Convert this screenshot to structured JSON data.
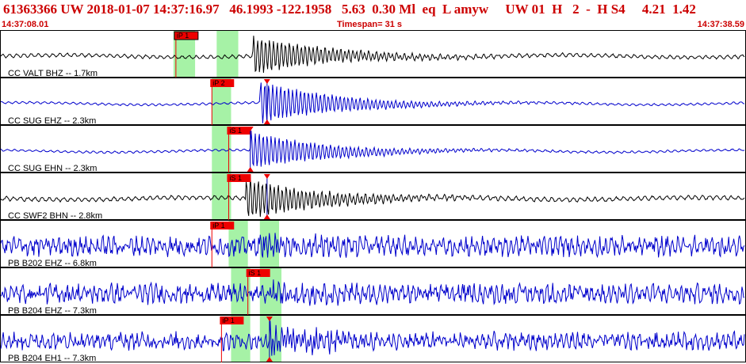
{
  "header": {
    "summary": "61363366 UW 2018-01-07 14:37:16.97   46.1993 -122.1958   5.63  0.30 Ml  eq  L amyw     UW 01  H   2  -  H S4     4.21  1.42",
    "start_time": "14:37:08.01",
    "timespan_label": "Timespan=  31 s",
    "end_time": "14:37:38.59"
  },
  "colors": {
    "header_text": "#cc0000",
    "black_trace": "#000000",
    "blue_trace": "#0000cc",
    "pick_flag": "#ee0000",
    "highlight": "#a6f2a6",
    "grid": "#c8c8c8"
  },
  "panels": [
    {
      "label": "CC VALT BHZ -- 1.7km",
      "color": "black",
      "kind": "smooth",
      "onset_s": 10.5,
      "amp": 0.85,
      "noise": 0.07,
      "pick": {
        "label": "iP 1",
        "t_s": 7.3,
        "selected": true
      },
      "highlights": [
        {
          "start_s": 7.2,
          "end_s": 8.1
        },
        {
          "start_s": 9.0,
          "end_s": 9.9
        }
      ],
      "marker_t_s": null
    },
    {
      "label": "CC SUG EHZ -- 2.3km",
      "color": "blue",
      "kind": "smooth",
      "onset_s": 10.8,
      "amp": 0.95,
      "noise": 0.04,
      "pick": {
        "label": "iP 2",
        "t_s": 8.8,
        "selected": false
      },
      "highlights": [
        {
          "start_s": 8.8,
          "end_s": 9.6
        }
      ],
      "marker_t_s": 11.1
    },
    {
      "label": "CC SUG EHN -- 2.3km",
      "color": "blue",
      "kind": "smooth",
      "onset_s": 10.4,
      "amp": 0.85,
      "noise": 0.04,
      "pick": {
        "label": "iS 1",
        "t_s": 9.5,
        "selected": false
      },
      "highlights": [
        {
          "start_s": 8.8,
          "end_s": 9.6
        }
      ],
      "marker_t_s": 10.4
    },
    {
      "label": "CC SWF2 BHN -- 2.8km",
      "color": "black",
      "kind": "smooth",
      "onset_s": 10.2,
      "amp": 0.9,
      "noise": 0.08,
      "pick": {
        "label": "iS 1",
        "t_s": 9.5,
        "selected": false
      },
      "highlights": [
        {
          "start_s": 8.8,
          "end_s": 9.6
        }
      ],
      "marker_t_s": 11.1
    },
    {
      "label": "PB B202 EHZ -- 6.8km",
      "color": "blue",
      "kind": "noisy",
      "onset_s": 10.8,
      "amp": 0.35,
      "noise": 0.45,
      "pick": {
        "label": "iP 1",
        "t_s": 8.8,
        "selected": false
      },
      "highlights": [
        {
          "start_s": 9.5,
          "end_s": 10.3
        },
        {
          "start_s": 10.8,
          "end_s": 11.6
        }
      ],
      "marker_t_s": null
    },
    {
      "label": "PB B204 EHZ -- 7.3km",
      "color": "blue",
      "kind": "noisy",
      "onset_s": 11.2,
      "amp": 0.3,
      "noise": 0.45,
      "pick": {
        "label": "iS 1",
        "t_s": 10.3,
        "selected": false
      },
      "highlights": [
        {
          "start_s": 9.6,
          "end_s": 10.4
        },
        {
          "start_s": 10.8,
          "end_s": 11.7
        }
      ],
      "marker_t_s": null
    },
    {
      "label": "PB B204 EH1 -- 7.3km",
      "color": "blue",
      "kind": "noisy",
      "onset_s": 11.2,
      "amp": 0.6,
      "noise": 0.4,
      "pick": {
        "label": "iP 1",
        "t_s": 9.2,
        "selected": false
      },
      "highlights": [
        {
          "start_s": 9.6,
          "end_s": 10.4
        },
        {
          "start_s": 10.8,
          "end_s": 11.7
        }
      ],
      "marker_t_s": 11.2
    }
  ]
}
